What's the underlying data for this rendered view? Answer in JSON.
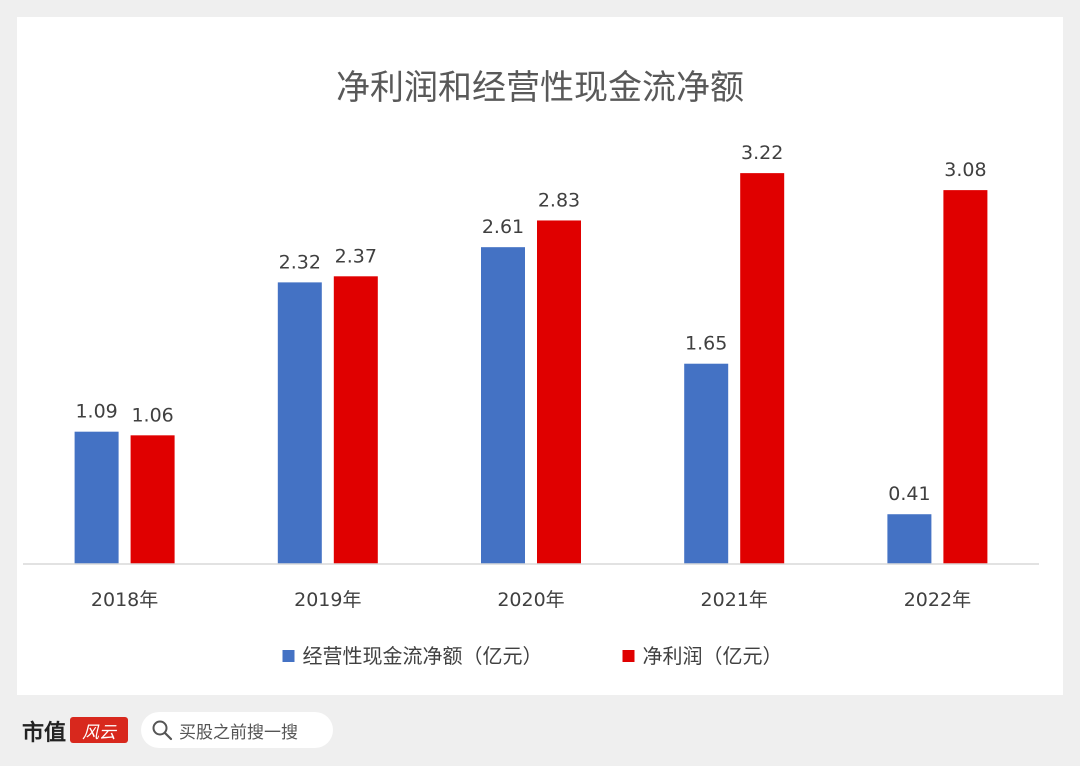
{
  "chart_data": {
    "type": "bar",
    "title": "净利润和经营性现金流净额",
    "categories": [
      "2018年",
      "2019年",
      "2020年",
      "2021年",
      "2022年"
    ],
    "series": [
      {
        "name": "经营性现金流净额（亿元）",
        "color": "#4472c4",
        "values": [
          1.09,
          2.32,
          2.61,
          1.65,
          0.41
        ]
      },
      {
        "name": "净利润（亿元）",
        "color": "#e00000",
        "values": [
          1.06,
          2.37,
          2.83,
          3.22,
          3.08
        ]
      }
    ],
    "ylim": [
      0,
      3.6
    ],
    "legend": "bottom",
    "grid": false
  },
  "footer": {
    "brand_name": "市值",
    "brand_mark": "风云",
    "search_placeholder": "买股之前搜一搜"
  }
}
